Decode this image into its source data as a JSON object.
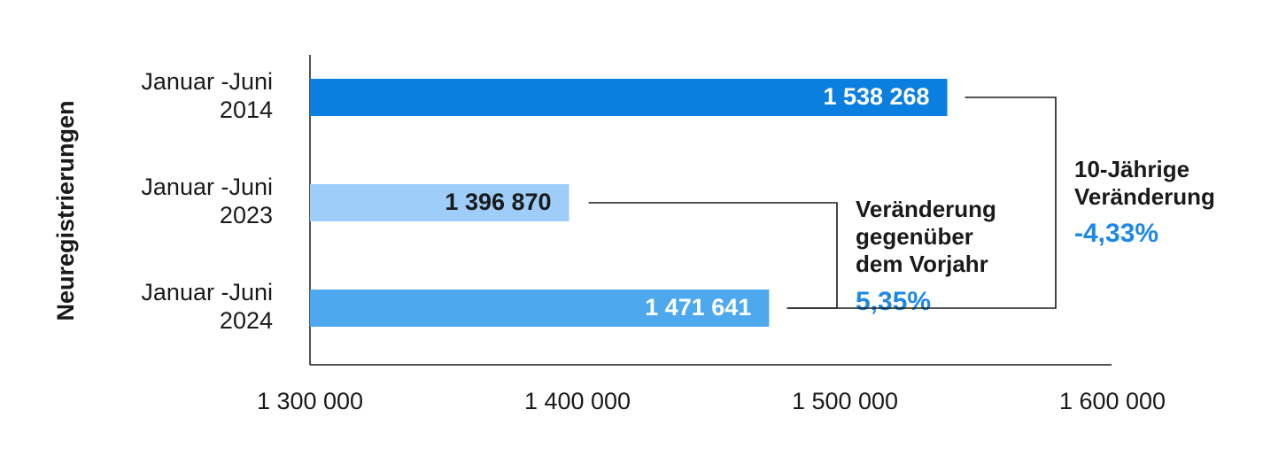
{
  "chart_data": {
    "type": "bar",
    "orientation": "horizontal",
    "ylabel": "Neuregistrierungen",
    "xlabel": "",
    "xlim": [
      1300000,
      1600000
    ],
    "xticks": [
      1300000,
      1400000,
      1500000,
      1600000
    ],
    "tick_labels": [
      "1 300 000",
      "1 400 000",
      "1 500 000",
      "1 600 000"
    ],
    "grid": false,
    "categories": [
      {
        "lines": [
          "Januar -Juni",
          "2014"
        ]
      },
      {
        "lines": [
          "Januar -Juni",
          "2023"
        ]
      },
      {
        "lines": [
          "Januar -Juni",
          "2024"
        ]
      }
    ],
    "values": [
      1538268,
      1396870,
      1471641
    ],
    "value_labels": [
      "1 538 268",
      "1 396 870",
      "1 471 641"
    ],
    "bar_colors": [
      "#0a7fdf",
      "#9dcdf8",
      "#4da8ee"
    ],
    "label_colors": [
      "#ffffff",
      "#1a1a1a",
      "#ffffff"
    ],
    "annotations": [
      {
        "title_lines": [
          "Veränderung",
          "gegenüber",
          "dem Vorjahr"
        ],
        "value": "5,35%",
        "connects": [
          1,
          2
        ]
      },
      {
        "title_lines": [
          "10-Jährige",
          "Veränderung"
        ],
        "value": "-4,33%",
        "connects": [
          0,
          2
        ]
      }
    ],
    "accent_color": "#1e88e5"
  }
}
